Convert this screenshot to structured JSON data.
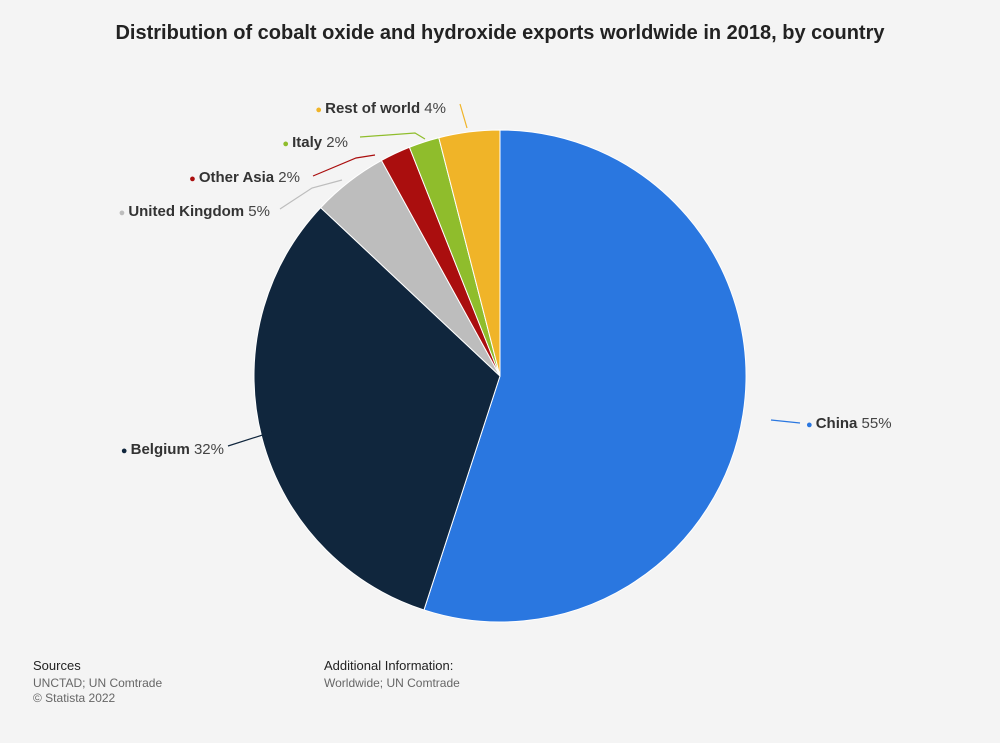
{
  "chart_data": {
    "type": "pie",
    "title": "Distribution of cobalt oxide and hydroxide exports worldwide in 2018, by country",
    "unit": "%",
    "slices": [
      {
        "name": "China",
        "value": 55,
        "color": "#2a77e0"
      },
      {
        "name": "Belgium",
        "value": 32,
        "color": "#10263d"
      },
      {
        "name": "United Kingdom",
        "value": 5,
        "color": "#bdbdbd"
      },
      {
        "name": "Other Asia",
        "value": 2,
        "color": "#aa0e0e"
      },
      {
        "name": "Italy",
        "value": 2,
        "color": "#8fbd2c"
      },
      {
        "name": "Rest of world",
        "value": 4,
        "color": "#f0b428"
      }
    ]
  },
  "footer": {
    "sources_heading": "Sources",
    "sources_line1": "UNCTAD; UN Comtrade",
    "sources_line2": "© Statista 2022",
    "info_heading": "Additional Information:",
    "info_line1": "Worldwide; UN Comtrade"
  }
}
